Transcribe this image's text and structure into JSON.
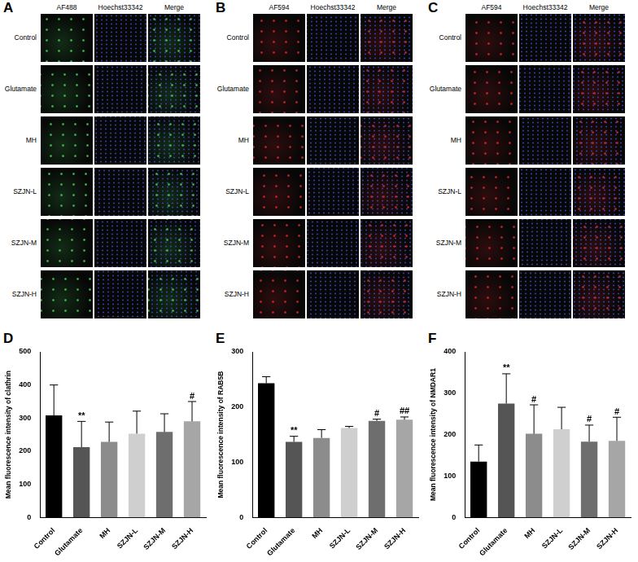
{
  "image_panels": [
    {
      "label": "A",
      "channels": [
        "AF488",
        "Hoechst33342",
        "Merge"
      ],
      "color": "#46d25a",
      "rows": [
        "Control",
        "Glutamate",
        "MH",
        "SZJN-L",
        "SZJN-M",
        "SZJN-H"
      ]
    },
    {
      "label": "B",
      "channels": [
        "AF594",
        "Hoechst33342",
        "Merge"
      ],
      "color": "#e0282d",
      "rows": [
        "Control",
        "Glutamate",
        "MH",
        "SZJN-L",
        "SZJN-M",
        "SZJN-H"
      ]
    },
    {
      "label": "C",
      "channels": [
        "AF594",
        "Hoechst33342",
        "Merge"
      ],
      "color": "#e0282d",
      "rows": [
        "Control",
        "Glutamate",
        "MH",
        "SZJN-L",
        "SZJN-M",
        "SZJN-H"
      ]
    }
  ],
  "chart_data": [
    {
      "type": "bar",
      "label": "D",
      "y_label": "Mean fluorescence intensity of clathrin",
      "categories": [
        "Control",
        "Glutamate",
        "MH",
        "SZJN-L",
        "SZJN-M",
        "SZJN-H"
      ],
      "values": [
        308,
        212,
        228,
        253,
        258,
        290
      ],
      "errors": [
        92,
        78,
        60,
        68,
        55,
        60
      ],
      "annotations": [
        null,
        "**",
        null,
        null,
        null,
        "#"
      ],
      "colors": [
        "#000000",
        "#555555",
        "#8c8c8c",
        "#cfcfcf",
        "#6e6e6e",
        "#a6a6a6"
      ],
      "ylim": [
        0,
        500
      ],
      "yticks": [
        0,
        100,
        200,
        300,
        400,
        500
      ],
      "grid": false
    },
    {
      "type": "bar",
      "label": "E",
      "y_label": "Mean fluorescence intensity of RAB5B",
      "categories": [
        "Control",
        "Glutamate",
        "MH",
        "SZJN-L",
        "SZJN-M",
        "SZJN-H"
      ],
      "values": [
        243,
        137,
        144,
        162,
        175,
        177
      ],
      "errors": [
        12,
        10,
        15,
        3,
        3,
        5
      ],
      "annotations": [
        null,
        "**",
        null,
        null,
        "#",
        "##"
      ],
      "colors": [
        "#000000",
        "#555555",
        "#8c8c8c",
        "#cfcfcf",
        "#6e6e6e",
        "#a6a6a6"
      ],
      "ylim": [
        0,
        300
      ],
      "yticks": [
        0,
        100,
        200,
        300
      ],
      "grid": false
    },
    {
      "type": "bar",
      "label": "F",
      "y_label": "Mean fluorescence intensity of NMDAR1",
      "categories": [
        "Control",
        "Glutamate",
        "MH",
        "SZJN-L",
        "SZJN-M",
        "SZJN-H"
      ],
      "values": [
        135,
        275,
        202,
        213,
        183,
        185
      ],
      "errors": [
        40,
        72,
        70,
        53,
        40,
        57
      ],
      "annotations": [
        null,
        "**",
        "#",
        null,
        "#",
        "#"
      ],
      "colors": [
        "#000000",
        "#555555",
        "#8c8c8c",
        "#cfcfcf",
        "#6e6e6e",
        "#a6a6a6"
      ],
      "ylim": [
        0,
        400
      ],
      "yticks": [
        0,
        100,
        200,
        300,
        400
      ],
      "grid": false
    }
  ]
}
